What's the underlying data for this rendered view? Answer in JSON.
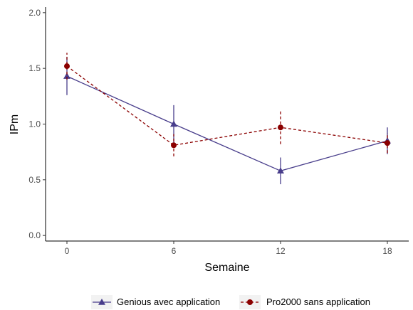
{
  "chart_data": {
    "type": "line",
    "xlabel": "Semaine",
    "ylabel": "IPm",
    "x": [
      0,
      6,
      12,
      18
    ],
    "xticks": [
      "0",
      "6",
      "12",
      "18"
    ],
    "xlim": [
      -1.2,
      19.2
    ],
    "yticks": [
      "0.0",
      "0.5",
      "1.0",
      "1.5",
      "2.0"
    ],
    "ylim": [
      -0.05,
      2.05
    ],
    "grid": false,
    "legend_position": "bottom",
    "series": [
      {
        "name": "Genious avec application",
        "color": "#483d8b",
        "line_style": "solid",
        "marker": "triangle",
        "values": [
          1.43,
          1.0,
          0.58,
          0.85
        ],
        "error_low": [
          1.26,
          0.83,
          0.46,
          0.73
        ],
        "error_high": [
          1.6,
          1.17,
          0.7,
          0.97
        ]
      },
      {
        "name": "Pro2000 sans application",
        "color": "#8b0000",
        "line_style": "dashed",
        "marker": "circle",
        "values": [
          1.52,
          0.81,
          0.97,
          0.83
        ],
        "error_low": [
          1.4,
          0.71,
          0.82,
          0.74
        ],
        "error_high": [
          1.64,
          0.91,
          1.12,
          0.92
        ]
      }
    ]
  }
}
